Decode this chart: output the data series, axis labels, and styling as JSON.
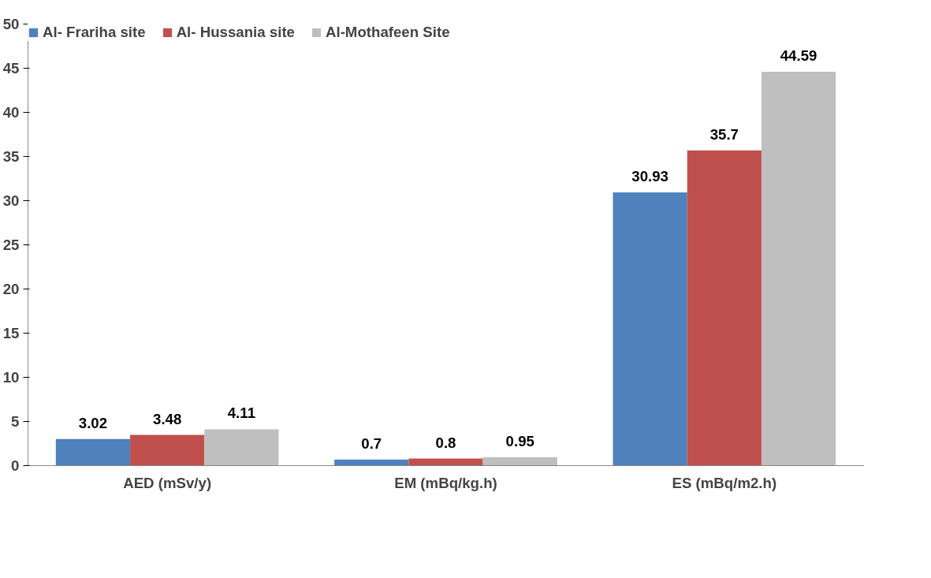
{
  "chart_data": {
    "type": "bar",
    "categories": [
      "AED (mSv/y)",
      "EM (mBq/kg.h)",
      "ES (mBq/m2.h)"
    ],
    "series": [
      {
        "name": "Al- Frariha site",
        "color": "#4f81bd",
        "values": [
          3.02,
          0.7,
          30.93
        ]
      },
      {
        "name": "Al- Hussania site",
        "color": "#c0504d",
        "values": [
          3.48,
          0.8,
          35.7
        ]
      },
      {
        "name": "Al-Mothafeen Site",
        "color": "#bfbfbf",
        "values": [
          4.11,
          0.95,
          44.59
        ]
      }
    ],
    "ylim": [
      0,
      50
    ],
    "yticks": [
      0,
      5,
      10,
      15,
      20,
      25,
      30,
      35,
      40,
      45,
      50
    ],
    "data_labels": true,
    "grid": false,
    "legend": "top left"
  }
}
